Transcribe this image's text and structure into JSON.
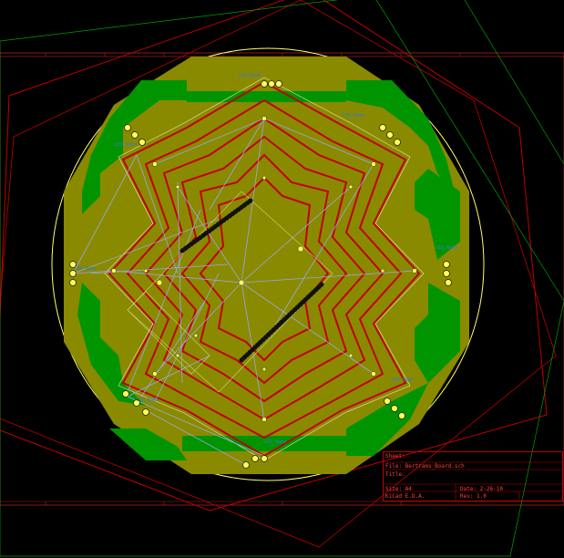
{
  "colors": {
    "background": "#000000",
    "board_outline": "#ffff66",
    "copper_fill": "#8a8a00",
    "green_zone": "#009400",
    "red_trace": "#c00000",
    "ratsnest": "#9aa7e6",
    "silkscreen": "#2a7fd4",
    "dark_red_frame": "#8b1a1a",
    "pad": "#ffff55"
  },
  "title_block": {
    "sheet_label": "Sheet:",
    "file_label": "File: Bertrams_Board.sch",
    "title_label": "Title:",
    "size_label": "Size: A4",
    "date_label": "Date: 2-26-10",
    "tool_label": "KiCad E.D.A.",
    "rev_label": "Rev: 1.0"
  },
  "component_labels": [
    "LED_Name",
    "LED_Name",
    "LED_Name",
    "LED_Name",
    "LED_Name",
    "LED_Name",
    "LED_Name",
    "LED_Name"
  ]
}
